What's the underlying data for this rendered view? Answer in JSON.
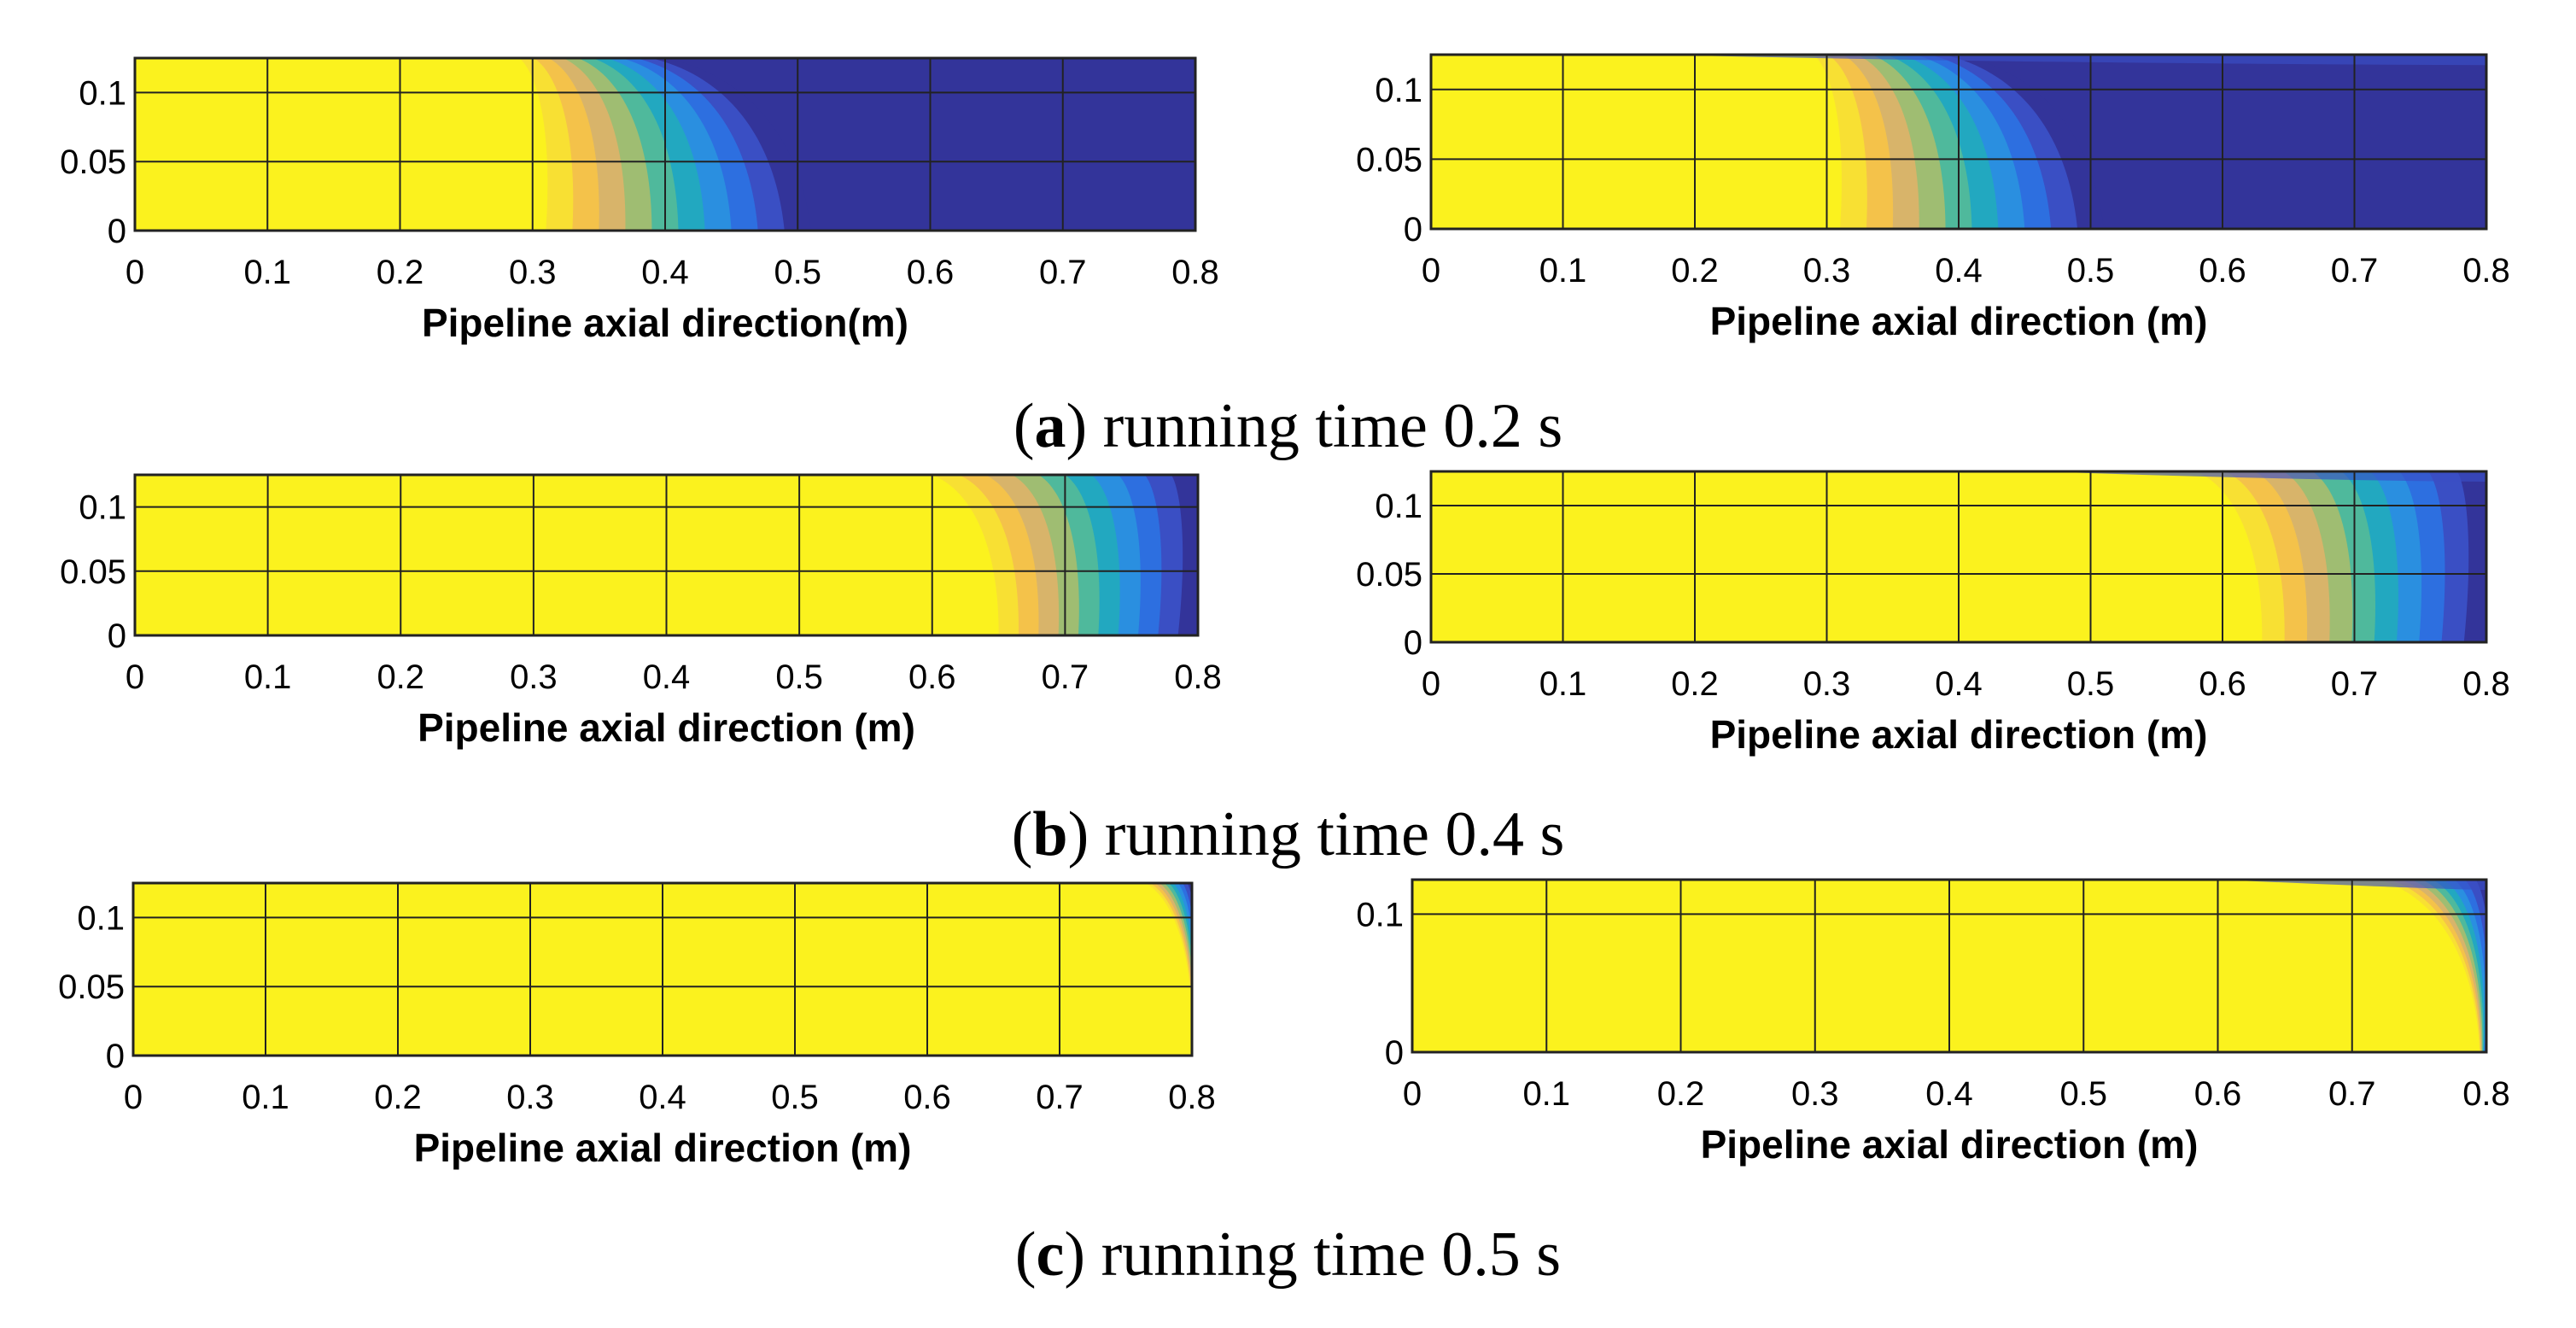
{
  "colors": {
    "levels": [
      "#fbf21e",
      "#f8e033",
      "#f4c24a",
      "#d8b46a",
      "#9fbd72",
      "#4fb99c",
      "#22a8c0",
      "#2a8fe0",
      "#2d6fe0",
      "#3a4fc4",
      "#33349a"
    ],
    "yellow": "#fbf21e",
    "deep": "#33349a",
    "grid": "#222222"
  },
  "captions": [
    {
      "letter": "a",
      "paren_open": "(",
      "paren_close": ")",
      "text": " running time 0.2 s"
    },
    {
      "letter": "b",
      "paren_open": "(",
      "paren_close": ")",
      "text": " running time 0.4 s"
    },
    {
      "letter": "c",
      "paren_open": "(",
      "paren_close": ")",
      "text": " running time 0.5 s"
    }
  ],
  "chart_data": [
    {
      "type": "contour",
      "id": "a-left",
      "row": "a",
      "side": "left",
      "title": "",
      "xlabel": "Pipeline axial direction(m)",
      "ylabel": "",
      "xlim": [
        0,
        0.8
      ],
      "ylim": [
        0,
        0.125
      ],
      "x_ticks": [
        0,
        0.1,
        0.2,
        0.3,
        0.4,
        0.5,
        0.6,
        0.7,
        0.8
      ],
      "x_tick_labels": [
        "0",
        "0.1",
        "0.2",
        "0.3",
        "0.4",
        "0.5",
        "0.6",
        "0.7",
        "0.8"
      ],
      "y_ticks": [
        0,
        0.05,
        0.1
      ],
      "y_tick_labels": [
        "0",
        "0.05",
        "0.1"
      ],
      "front": {
        "x_top_start": 0.29,
        "x_top_end": 0.4,
        "x_bottom_start": 0.31,
        "x_bottom_end": 0.51
      },
      "top_shear": false
    },
    {
      "type": "contour",
      "id": "a-right",
      "row": "a",
      "side": "right",
      "title": "",
      "xlabel": "Pipeline axial direction (m)",
      "ylabel": "",
      "xlim": [
        0,
        0.8
      ],
      "ylim": [
        0,
        0.125
      ],
      "x_ticks": [
        0,
        0.1,
        0.2,
        0.3,
        0.4,
        0.5,
        0.6,
        0.7,
        0.8
      ],
      "x_tick_labels": [
        "0",
        "0.1",
        "0.2",
        "0.3",
        "0.4",
        "0.5",
        "0.6",
        "0.7",
        "0.8"
      ],
      "y_ticks": [
        0,
        0.05,
        0.1
      ],
      "y_tick_labels": [
        "0",
        "0.05",
        "0.1"
      ],
      "front": {
        "x_top_start": 0.29,
        "x_top_end": 0.4,
        "x_bottom_start": 0.31,
        "x_bottom_end": 0.51
      },
      "top_shear": true
    },
    {
      "type": "contour",
      "id": "b-left",
      "row": "b",
      "side": "left",
      "title": "",
      "xlabel": "Pipeline axial direction (m)",
      "ylabel": "",
      "xlim": [
        0,
        0.8
      ],
      "ylim": [
        0,
        0.125
      ],
      "x_ticks": [
        0,
        0.1,
        0.2,
        0.3,
        0.4,
        0.5,
        0.6,
        0.7,
        0.8
      ],
      "x_tick_labels": [
        "0",
        "0.1",
        "0.2",
        "0.3",
        "0.4",
        "0.5",
        "0.6",
        "0.7",
        "0.8"
      ],
      "y_ticks": [
        0,
        0.05,
        0.1
      ],
      "y_tick_labels": [
        "0",
        "0.05",
        "0.1"
      ],
      "front": {
        "x_top_start": 0.6,
        "x_top_end": 0.8,
        "x_bottom_start": 0.65,
        "x_bottom_end": 0.8
      },
      "top_shear": false
    },
    {
      "type": "contour",
      "id": "b-right",
      "row": "b",
      "side": "right",
      "title": "",
      "xlabel": "Pipeline axial direction (m)",
      "ylabel": "",
      "xlim": [
        0,
        0.8
      ],
      "ylim": [
        0,
        0.125
      ],
      "x_ticks": [
        0,
        0.1,
        0.2,
        0.3,
        0.4,
        0.5,
        0.6,
        0.7,
        0.8
      ],
      "x_tick_labels": [
        "0",
        "0.1",
        "0.2",
        "0.3",
        "0.4",
        "0.5",
        "0.6",
        "0.7",
        "0.8"
      ],
      "y_ticks": [
        0,
        0.05,
        0.1
      ],
      "y_tick_labels": [
        "0",
        "0.05",
        "0.1"
      ],
      "front": {
        "x_top_start": 0.58,
        "x_top_end": 0.8,
        "x_bottom_start": 0.63,
        "x_bottom_end": 0.8
      },
      "top_shear": true
    },
    {
      "type": "contour",
      "id": "c-left",
      "row": "c",
      "side": "left",
      "title": "",
      "xlabel": "Pipeline axial direction (m)",
      "ylabel": "",
      "xlim": [
        0,
        0.8
      ],
      "ylim": [
        0,
        0.125
      ],
      "x_ticks": [
        0,
        0.1,
        0.2,
        0.3,
        0.4,
        0.5,
        0.6,
        0.7,
        0.8
      ],
      "x_tick_labels": [
        "0",
        "0.1",
        "0.2",
        "0.3",
        "0.4",
        "0.5",
        "0.6",
        "0.7",
        "0.8"
      ],
      "y_ticks": [
        0,
        0.05,
        0.1
      ],
      "y_tick_labels": [
        "0",
        "0.05",
        "0.1"
      ],
      "front": {
        "x_top_start": 0.765,
        "x_top_end": 0.8,
        "x_bottom_start": 0.8,
        "x_bottom_end": 0.8
      },
      "top_shear": false
    },
    {
      "type": "contour",
      "id": "c-right",
      "row": "c",
      "side": "right",
      "title": "",
      "xlabel": "Pipeline axial direction (m)",
      "ylabel": "",
      "xlim": [
        0,
        0.8
      ],
      "ylim": [
        0,
        0.125
      ],
      "x_ticks": [
        0,
        0.1,
        0.2,
        0.3,
        0.4,
        0.5,
        0.6,
        0.7,
        0.8
      ],
      "x_tick_labels": [
        "0",
        "0.1",
        "0.2",
        "0.3",
        "0.4",
        "0.5",
        "0.6",
        "0.7",
        "0.8"
      ],
      "y_ticks": [
        0,
        0.1
      ],
      "y_tick_labels": [
        "0",
        "0.1"
      ],
      "front": {
        "x_top_start": 0.72,
        "x_top_end": 0.8,
        "x_bottom_start": 0.795,
        "x_bottom_end": 0.8
      },
      "top_shear": true
    }
  ]
}
